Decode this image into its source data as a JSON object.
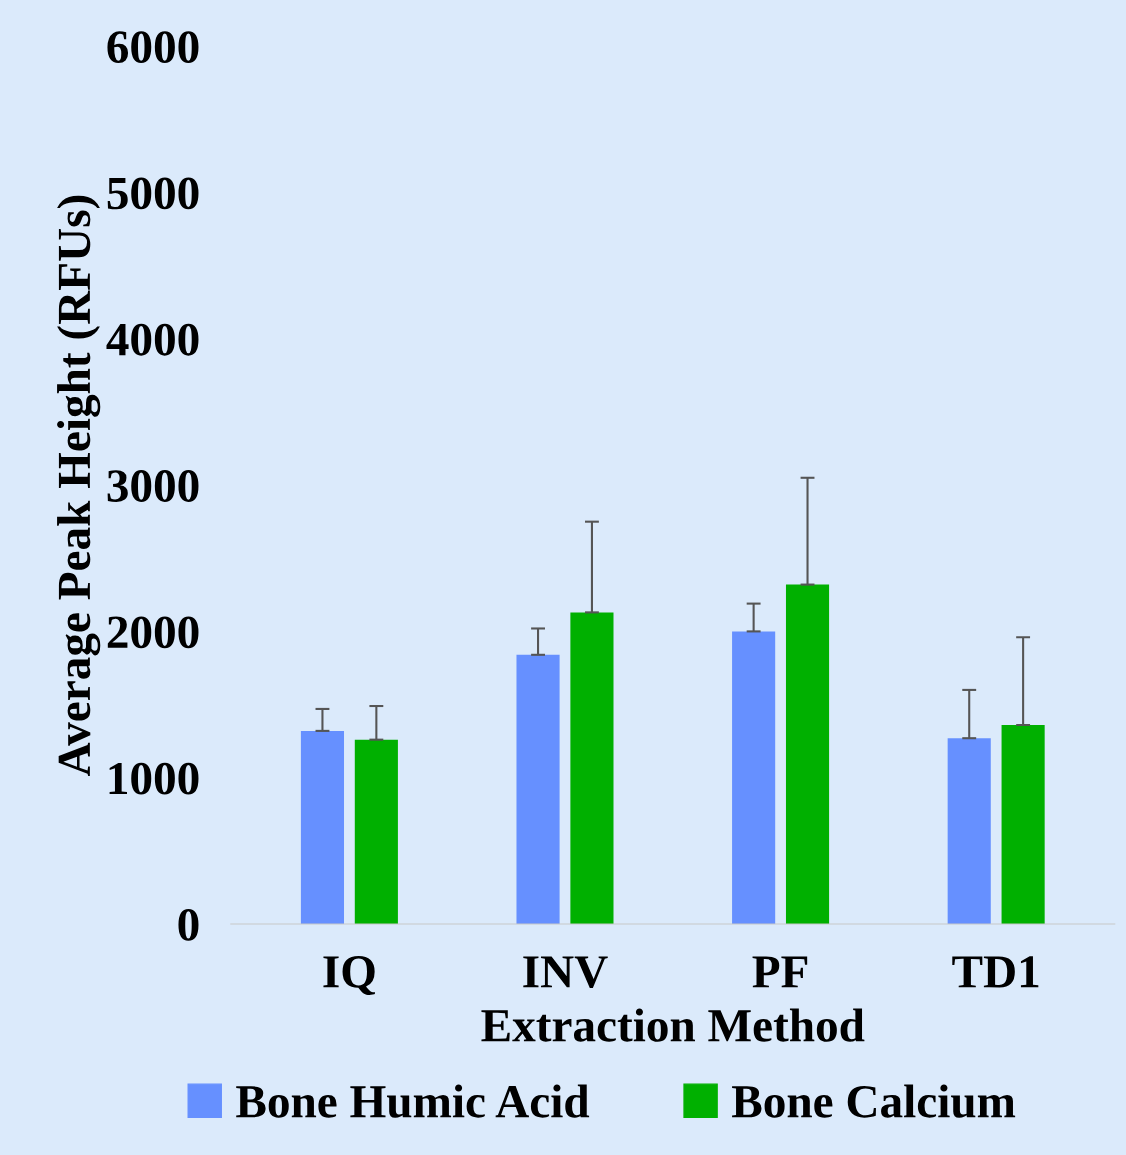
{
  "chart_data": {
    "type": "bar",
    "xlabel": "Extraction Method",
    "ylabel": "Average Peak Height (RFUs)",
    "categories": [
      "IQ",
      "INV",
      "PF",
      "TD1"
    ],
    "series": [
      {
        "name": "Bone Humic Acid",
        "color": "#6690ff",
        "values": [
          1320,
          1840,
          2000,
          1270
        ],
        "errors": [
          [
            1320,
            1470
          ],
          [
            1840,
            2020
          ],
          [
            2000,
            2190
          ],
          [
            1270,
            1600
          ]
        ]
      },
      {
        "name": "Bone Calcium",
        "color": "#00b000",
        "values": [
          1260,
          2130,
          2320,
          1360
        ],
        "errors": [
          [
            1260,
            1490
          ],
          [
            2130,
            2750
          ],
          [
            2320,
            3050
          ],
          [
            1360,
            1960
          ]
        ]
      }
    ],
    "ylim": [
      0,
      6000
    ],
    "yticks": [
      0,
      1000,
      2000,
      3000,
      4000,
      5000,
      6000
    ],
    "grid": false,
    "legend": "bottom"
  }
}
